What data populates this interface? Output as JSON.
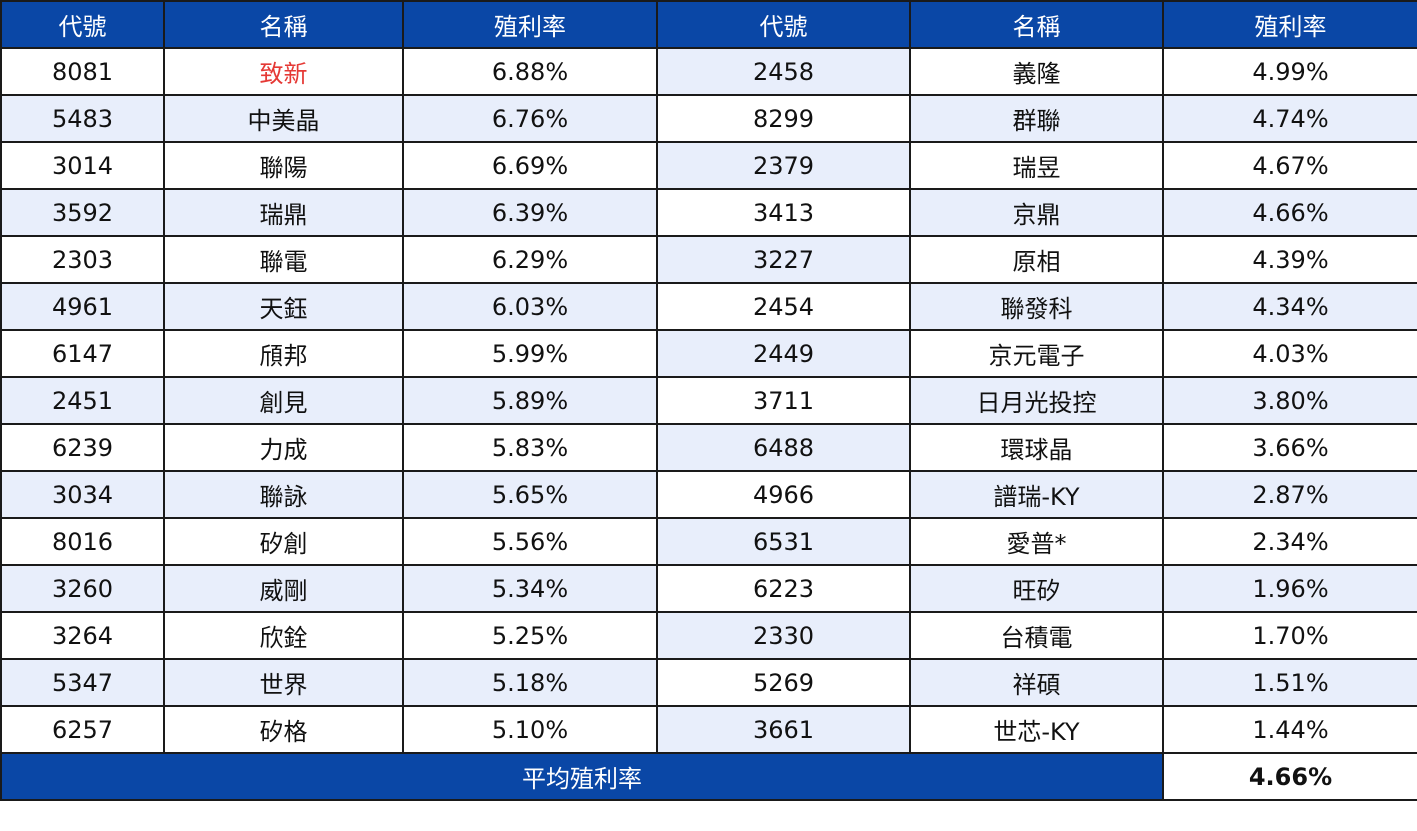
{
  "headers": [
    "代號",
    "名稱",
    "殖利率",
    "代號",
    "名稱",
    "殖利率"
  ],
  "highlight_color": "#e53935",
  "rows": [
    {
      "c1": "8081",
      "n1": "致新",
      "y1": "6.88%",
      "c2": "2458",
      "n2": "義隆",
      "y2": "4.99%"
    },
    {
      "c1": "5483",
      "n1": "中美晶",
      "y1": "6.76%",
      "c2": "8299",
      "n2": "群聯",
      "y2": "4.74%"
    },
    {
      "c1": "3014",
      "n1": "聯陽",
      "y1": "6.69%",
      "c2": "2379",
      "n2": "瑞昱",
      "y2": "4.67%"
    },
    {
      "c1": "3592",
      "n1": "瑞鼎",
      "y1": "6.39%",
      "c2": "3413",
      "n2": "京鼎",
      "y2": "4.66%"
    },
    {
      "c1": "2303",
      "n1": "聯電",
      "y1": "6.29%",
      "c2": "3227",
      "n2": "原相",
      "y2": "4.39%"
    },
    {
      "c1": "4961",
      "n1": "天鈺",
      "y1": "6.03%",
      "c2": "2454",
      "n2": "聯發科",
      "y2": "4.34%"
    },
    {
      "c1": "6147",
      "n1": "頎邦",
      "y1": "5.99%",
      "c2": "2449",
      "n2": "京元電子",
      "y2": "4.03%"
    },
    {
      "c1": "2451",
      "n1": "創見",
      "y1": "5.89%",
      "c2": "3711",
      "n2": "日月光投控",
      "y2": "3.80%"
    },
    {
      "c1": "6239",
      "n1": "力成",
      "y1": "5.83%",
      "c2": "6488",
      "n2": "環球晶",
      "y2": "3.66%"
    },
    {
      "c1": "3034",
      "n1": "聯詠",
      "y1": "5.65%",
      "c2": "4966",
      "n2": "譜瑞-KY",
      "y2": "2.87%"
    },
    {
      "c1": "8016",
      "n1": "矽創",
      "y1": "5.56%",
      "c2": "6531",
      "n2": "愛普*",
      "y2": "2.34%"
    },
    {
      "c1": "3260",
      "n1": "威剛",
      "y1": "5.34%",
      "c2": "6223",
      "n2": "旺矽",
      "y2": "1.96%"
    },
    {
      "c1": "3264",
      "n1": "欣銓",
      "y1": "5.25%",
      "c2": "2330",
      "n2": "台積電",
      "y2": "1.70%"
    },
    {
      "c1": "5347",
      "n1": "世界",
      "y1": "5.18%",
      "c2": "5269",
      "n2": "祥碩",
      "y2": "1.51%"
    },
    {
      "c1": "6257",
      "n1": "矽格",
      "y1": "5.10%",
      "c2": "3661",
      "n2": "世芯-KY",
      "y2": "1.44%"
    }
  ],
  "footer": {
    "label": "平均殖利率",
    "value": "4.66%"
  }
}
